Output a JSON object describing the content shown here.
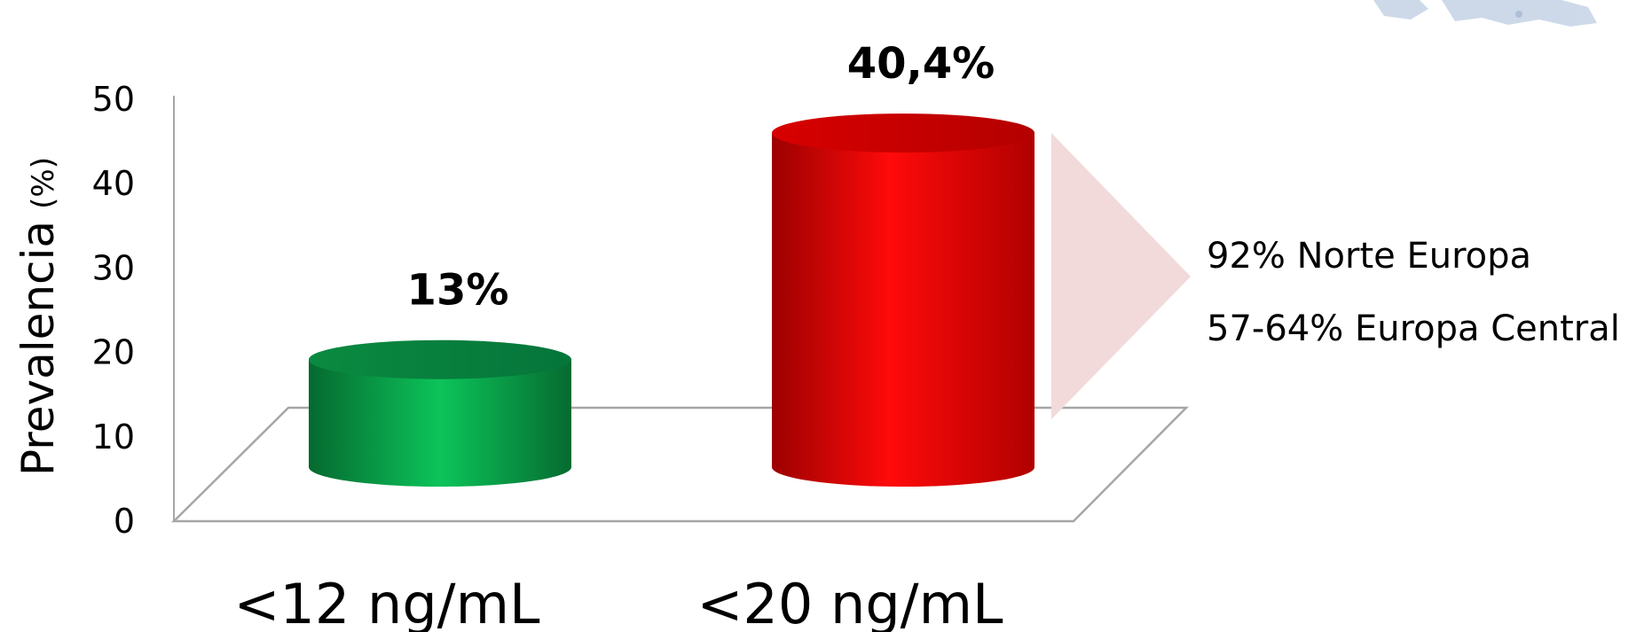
{
  "chart_data": {
    "type": "bar",
    "categories": [
      "<12 ng/mL",
      "<20 ng/mL"
    ],
    "values": [
      13,
      40.4
    ],
    "data_labels": [
      "13%",
      "40,4%"
    ],
    "bar_colors": [
      "#0ab050",
      "#ff0000"
    ],
    "ylabel": "Prevalencia",
    "ylabel_unit": "(%)",
    "ylim": [
      0,
      50
    ],
    "yticks": [
      0,
      10,
      20,
      30,
      40,
      50
    ],
    "grid": false,
    "style": "3d-cylinder"
  },
  "annotation": {
    "lines": [
      "92% Norte Europa",
      "57-64% Europa Central"
    ],
    "arrow_color": "#f2dada"
  }
}
